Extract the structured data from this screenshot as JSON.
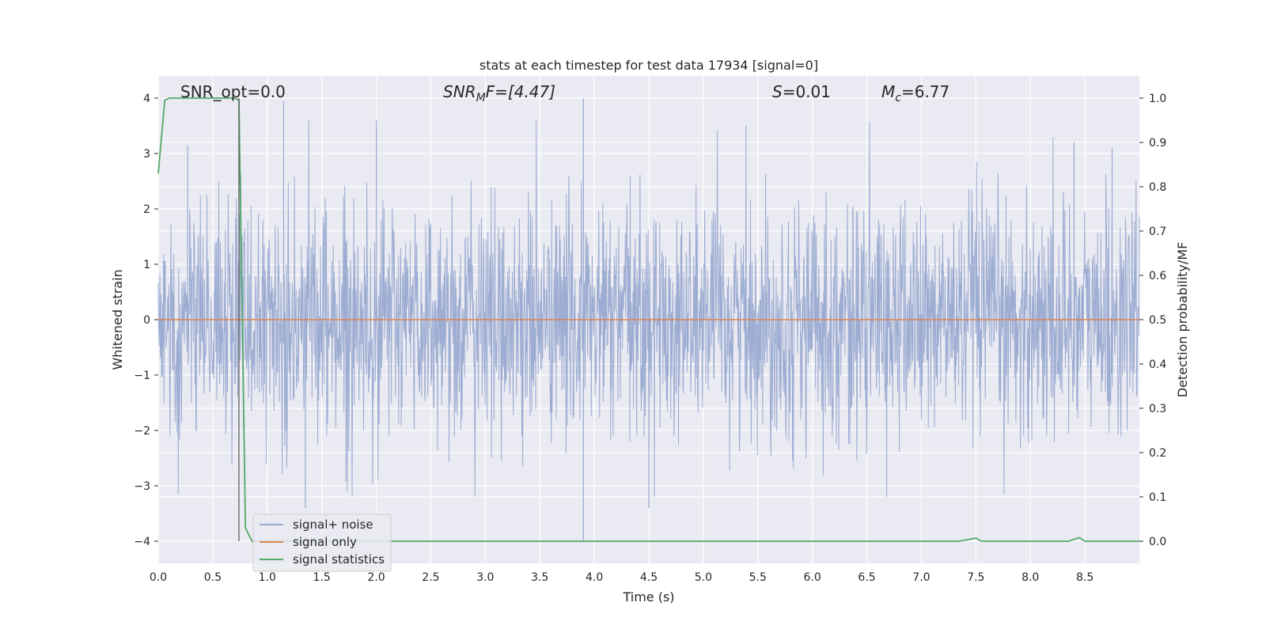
{
  "chart_data": {
    "type": "line",
    "title": "stats at each timestep for test data 17934 [signal=0]",
    "xlabel": "Time (s)",
    "ylabel_left": "Whitened strain",
    "ylabel_right": "Detection probability/MF",
    "xlim": [
      0.0,
      9.0
    ],
    "ylim_left": [
      -4.4,
      4.4
    ],
    "ylim_right": [
      -0.05,
      1.05
    ],
    "x_ticks": [
      "0.0",
      "0.5",
      "1.0",
      "1.5",
      "2.0",
      "2.5",
      "3.0",
      "3.5",
      "4.0",
      "4.5",
      "5.0",
      "5.5",
      "6.0",
      "6.5",
      "7.0",
      "7.5",
      "8.0",
      "8.5"
    ],
    "x_tick_values": [
      0.0,
      0.5,
      1.0,
      1.5,
      2.0,
      2.5,
      3.0,
      3.5,
      4.0,
      4.5,
      5.0,
      5.5,
      6.0,
      6.5,
      7.0,
      7.5,
      8.0,
      8.5
    ],
    "y_left_ticks": [
      "4",
      "3",
      "2",
      "1",
      "0",
      "−1",
      "−2",
      "−3",
      "−4"
    ],
    "y_left_tick_values": [
      4,
      3,
      2,
      1,
      0,
      -1,
      -2,
      -3,
      -4
    ],
    "y_right_ticks": [
      "1.0",
      "0.9",
      "0.8",
      "0.7",
      "0.6",
      "0.5",
      "0.4",
      "0.3",
      "0.2",
      "0.1",
      "0.0"
    ],
    "y_right_tick_values": [
      1.0,
      0.9,
      0.8,
      0.7,
      0.6,
      0.5,
      0.4,
      0.3,
      0.2,
      0.1,
      0.0
    ],
    "grid": true,
    "legend_position": "lower-left",
    "annotations": {
      "snr_opt": "SNR_opt=0.0",
      "snr_mf_main": "SNR",
      "snr_mf_sub": "M",
      "snr_mf_rest": "F=[4.47]",
      "s_main": "S",
      "s_rest": "=0.01",
      "mc_main": "M",
      "mc_sub": "c",
      "mc_rest": "=6.77"
    },
    "vline_x": 0.74,
    "series": [
      {
        "name": "signal+ noise",
        "color": "#98a9d0",
        "axis": "left",
        "description_values": "dense noise, envelope approx -3.2 to 3.9; peaks at x≈1.15 (3.9), x≈3.9 (-4.0, 4.0), x≈4.5 (-3.4)",
        "peaks": [
          [
            0.27,
            3.15
          ],
          [
            1.15,
            3.95
          ],
          [
            1.35,
            -3.4
          ],
          [
            2.0,
            3.6
          ],
          [
            3.9,
            4.0
          ],
          [
            3.9,
            -4.0
          ],
          [
            4.5,
            -3.4
          ],
          [
            8.4,
            3.2
          ],
          [
            8.75,
            3.1
          ]
        ]
      },
      {
        "name": "signal only",
        "color": "#dd8452",
        "axis": "left",
        "x": [
          0.0,
          9.0
        ],
        "y": [
          0.0,
          0.0
        ]
      },
      {
        "name": "signal statistics",
        "color": "#55a868",
        "axis": "right",
        "x": [
          0.0,
          0.06,
          0.1,
          0.15,
          0.5,
          0.7,
          0.74,
          0.8,
          0.86,
          0.9,
          7.35,
          7.5,
          7.55,
          8.35,
          8.45,
          8.5,
          9.0
        ],
        "y": [
          0.83,
          0.995,
          1.0,
          1.0,
          1.0,
          1.0,
          0.995,
          0.03,
          0.0,
          0.0,
          0.0,
          0.007,
          0.0,
          0.0,
          0.008,
          0.0,
          0.0
        ]
      }
    ]
  },
  "colors": {
    "plot_background": "#eaeaf2",
    "grid": "#ffffff",
    "text": "#262626",
    "vline": "#555555"
  }
}
